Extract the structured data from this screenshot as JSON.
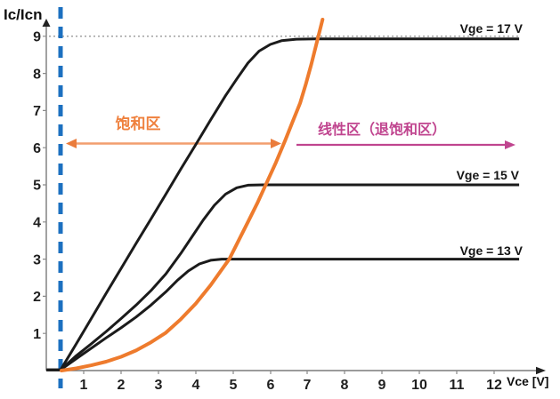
{
  "chart_data": {
    "type": "line",
    "title": "",
    "ylabel": "Ic/Icn",
    "xlabel": "Vce [V]",
    "xlim": [
      0,
      13
    ],
    "ylim": [
      0,
      9.6
    ],
    "grid": "off; single dotted horizontal reference line at Ic/Icn = 9",
    "legend_position": "labels at right end of each curve",
    "x_ticks": [
      "1",
      "2",
      "3",
      "4",
      "5",
      "6",
      "7",
      "8",
      "9",
      "10",
      "11",
      "12"
    ],
    "y_ticks": [
      "1",
      "2",
      "3",
      "4",
      "5",
      "6",
      "7",
      "8",
      "9"
    ],
    "series": [
      {
        "name": "Vge = 17 V",
        "color": "#1b1b1b",
        "points": [
          [
            0,
            0.02
          ],
          [
            0.38,
            0.02
          ],
          [
            0.8,
            0.72
          ],
          [
            1.2,
            1.4
          ],
          [
            1.6,
            2.08
          ],
          [
            2,
            2.75
          ],
          [
            2.4,
            3.42
          ],
          [
            2.8,
            4.08
          ],
          [
            3.2,
            4.75
          ],
          [
            3.6,
            5.42
          ],
          [
            4,
            6.08
          ],
          [
            4.4,
            6.75
          ],
          [
            4.8,
            7.4
          ],
          [
            5.1,
            7.85
          ],
          [
            5.4,
            8.28
          ],
          [
            5.7,
            8.6
          ],
          [
            6,
            8.78
          ],
          [
            6.3,
            8.88
          ],
          [
            6.7,
            8.92
          ],
          [
            7.2,
            8.93
          ],
          [
            12.67,
            8.93
          ]
        ]
      },
      {
        "name": "Vge = 15 V",
        "color": "#1b1b1b",
        "points": [
          [
            0,
            0.02
          ],
          [
            0.38,
            0.02
          ],
          [
            0.8,
            0.4
          ],
          [
            1.2,
            0.72
          ],
          [
            1.6,
            1.05
          ],
          [
            2,
            1.4
          ],
          [
            2.4,
            1.76
          ],
          [
            2.8,
            2.15
          ],
          [
            3.2,
            2.6
          ],
          [
            3.6,
            3.15
          ],
          [
            3.9,
            3.6
          ],
          [
            4.2,
            4.05
          ],
          [
            4.5,
            4.45
          ],
          [
            4.8,
            4.75
          ],
          [
            5.1,
            4.92
          ],
          [
            5.4,
            4.99
          ],
          [
            5.8,
            5
          ],
          [
            12.67,
            5
          ]
        ]
      },
      {
        "name": "Vge = 13 V",
        "color": "#1b1b1b",
        "points": [
          [
            0,
            0.02
          ],
          [
            0.38,
            0.02
          ],
          [
            0.8,
            0.32
          ],
          [
            1.2,
            0.6
          ],
          [
            1.6,
            0.88
          ],
          [
            2,
            1.15
          ],
          [
            2.4,
            1.44
          ],
          [
            2.8,
            1.76
          ],
          [
            3.2,
            2.12
          ],
          [
            3.5,
            2.42
          ],
          [
            3.8,
            2.68
          ],
          [
            4.1,
            2.87
          ],
          [
            4.4,
            2.97
          ],
          [
            4.7,
            3
          ],
          [
            12.67,
            3
          ]
        ]
      },
      {
        "name": "orange-curve",
        "color": "#EE7B2D",
        "points": [
          [
            0.4,
            0
          ],
          [
            0.8,
            0.06
          ],
          [
            1.2,
            0.14
          ],
          [
            1.6,
            0.24
          ],
          [
            2,
            0.37
          ],
          [
            2.4,
            0.54
          ],
          [
            2.8,
            0.76
          ],
          [
            3.2,
            1.02
          ],
          [
            3.6,
            1.38
          ],
          [
            4,
            1.8
          ],
          [
            4.4,
            2.3
          ],
          [
            4.9,
            3
          ],
          [
            5.15,
            3.5
          ],
          [
            5.4,
            4
          ],
          [
            5.65,
            4.5
          ],
          [
            5.9,
            5.05
          ],
          [
            6.15,
            5.6
          ],
          [
            6.4,
            6.2
          ],
          [
            6.6,
            6.7
          ],
          [
            6.8,
            7.2
          ],
          [
            6.95,
            7.7
          ],
          [
            7.1,
            8.25
          ],
          [
            7.25,
            8.85
          ],
          [
            7.4,
            9.45
          ]
        ]
      }
    ],
    "annotations": {
      "saturation_region": {
        "label": "饱和区",
        "label_color": "#EF813E",
        "arrow_line_color": "#F29E6E",
        "arrow_head_color": "#EA7C3C",
        "x_range": [
          0.55,
          6.25
        ],
        "y": 6.1
      },
      "linear_region": {
        "label": "线性区（退饱和区）",
        "color": "#C0458F",
        "x_range": [
          6.7,
          12.55
        ],
        "y": 6.08
      },
      "vce_sat_boundary": {
        "type": "vertical-dashed-line",
        "color": "#1C70C0",
        "x": 0.38
      },
      "ref_line_at_9": {
        "type": "dotted-horizontal-line",
        "color": "#979797",
        "y": 9
      }
    }
  }
}
